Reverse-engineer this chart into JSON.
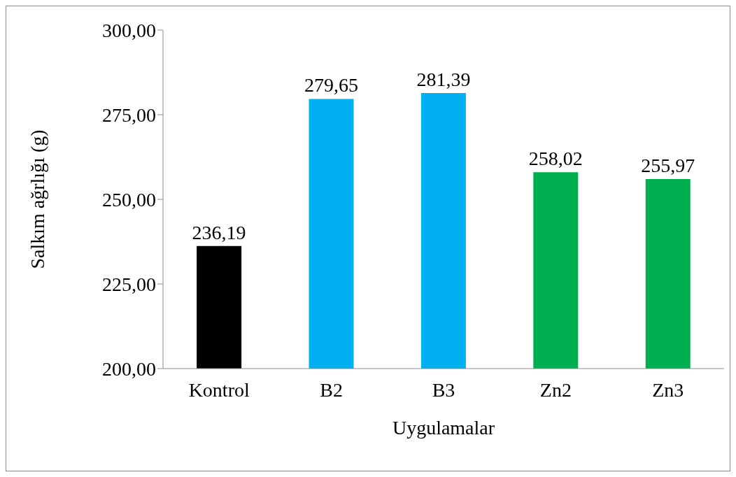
{
  "chart_data": {
    "type": "bar",
    "categories": [
      "Kontrol",
      "B2",
      "B3",
      "Zn2",
      "Zn3"
    ],
    "values": [
      236.19,
      279.65,
      281.39,
      258.02,
      255.97
    ],
    "colors": [
      "#000000",
      "#00b0f0",
      "#00b0f0",
      "#00b050",
      "#00b050"
    ],
    "xlabel": "Uygulamalar",
    "ylabel": "Salkım ağrlığı (g)",
    "ylim": [
      200,
      300
    ],
    "yticks": [
      {
        "value": 200,
        "label": "200,00"
      },
      {
        "value": 225,
        "label": "225,00"
      },
      {
        "value": 250,
        "label": "250,00"
      },
      {
        "value": 275,
        "label": "275,00"
      },
      {
        "value": 300,
        "label": "300,00"
      }
    ],
    "value_labels": [
      "236,19",
      "279,65",
      "281,39",
      "258,02",
      "255,97"
    ],
    "grid": false,
    "legend": false
  }
}
